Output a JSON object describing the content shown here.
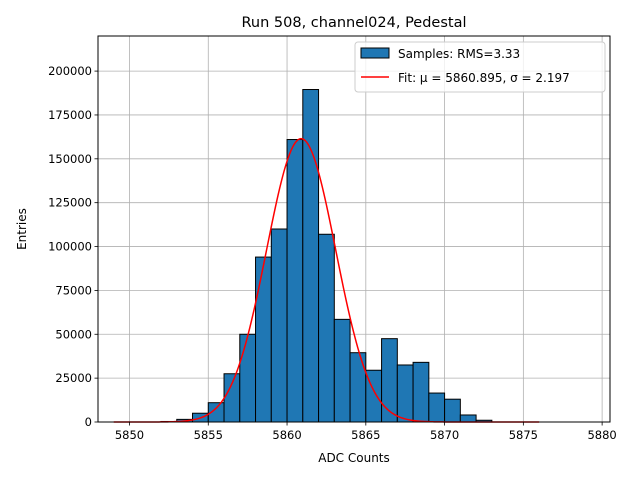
{
  "chart_data": {
    "type": "bar",
    "title": "Run 508, channel024, Pedestal",
    "xlabel": "ADC Counts",
    "ylabel": "Entries",
    "xlim": [
      5848.0,
      5880.5
    ],
    "ylim": [
      0,
      220000
    ],
    "x_ticks": [
      5850,
      5855,
      5860,
      5865,
      5870,
      5875,
      5880
    ],
    "y_ticks": [
      0,
      25000,
      50000,
      75000,
      100000,
      125000,
      150000,
      175000,
      200000
    ],
    "grid": true,
    "legend_position": "top-right",
    "bin_width": 1,
    "bins": [
      {
        "x": 5852.5,
        "value": 300
      },
      {
        "x": 5853.5,
        "value": 1500
      },
      {
        "x": 5854.5,
        "value": 5000
      },
      {
        "x": 5855.5,
        "value": 11000
      },
      {
        "x": 5856.5,
        "value": 27500
      },
      {
        "x": 5857.5,
        "value": 50000
      },
      {
        "x": 5858.5,
        "value": 94000
      },
      {
        "x": 5859.5,
        "value": 110000
      },
      {
        "x": 5860.5,
        "value": 161000
      },
      {
        "x": 5861.5,
        "value": 189500
      },
      {
        "x": 5862.5,
        "value": 107000
      },
      {
        "x": 5863.5,
        "value": 58500
      },
      {
        "x": 5864.5,
        "value": 39500
      },
      {
        "x": 5865.5,
        "value": 29500
      },
      {
        "x": 5866.5,
        "value": 47500
      },
      {
        "x": 5867.5,
        "value": 32500
      },
      {
        "x": 5868.5,
        "value": 34000
      },
      {
        "x": 5869.5,
        "value": 16500
      },
      {
        "x": 5870.5,
        "value": 13000
      },
      {
        "x": 5871.5,
        "value": 4000
      },
      {
        "x": 5872.5,
        "value": 1000
      }
    ],
    "series": [
      {
        "name": "Samples: RMS=3.33",
        "kind": "histogram",
        "color": "#1f77b4",
        "edge_color": "#000000"
      },
      {
        "name": "Fit: μ = 5860.895, σ = 2.197",
        "kind": "line",
        "color": "#ff0000",
        "amplitude": 161500,
        "mu": 5860.895,
        "sigma": 2.197,
        "x_range": [
          5849,
          5876
        ]
      }
    ]
  }
}
